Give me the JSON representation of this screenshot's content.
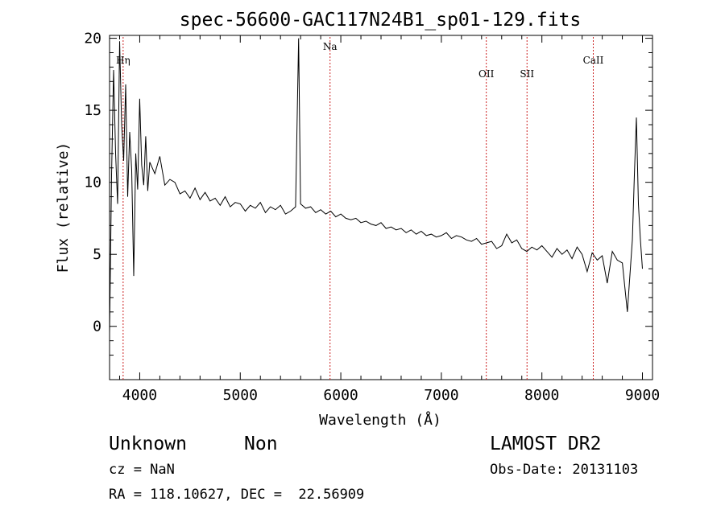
{
  "chart_data": {
    "type": "line",
    "title": "spec-56600-GAC117N24B1_sp01-129.fits",
    "xlabel": "Wavelength (Å)",
    "ylabel": "Flux (relative)",
    "xlim": [
      3700,
      9100
    ],
    "ylim": [
      -3.7,
      20.2
    ],
    "x_ticks": [
      4000,
      5000,
      6000,
      7000,
      8000,
      9000
    ],
    "y_ticks": [
      0,
      5,
      10,
      15,
      20
    ],
    "grid": false,
    "line_color": "#000000",
    "marker_color": "#cc2222",
    "spectral_lines": [
      {
        "name": "Hη",
        "x": 3835
      },
      {
        "name": "Na",
        "x": 5893
      },
      {
        "name": "OII",
        "x": 7447
      },
      {
        "name": "SII",
        "x": 7852
      },
      {
        "name": "CaII",
        "x": 8511
      }
    ],
    "series": [
      {
        "x": [
          3700,
          3720,
          3740,
          3760,
          3780,
          3800,
          3820,
          3840,
          3860,
          3880,
          3900,
          3920,
          3940,
          3960,
          3980,
          4000,
          4020,
          4040,
          4060,
          4080,
          4100,
          4150,
          4200,
          4250,
          4300,
          4350,
          4400,
          4450,
          4500,
          4550,
          4600,
          4650,
          4700,
          4750,
          4800,
          4850,
          4900,
          4950,
          5000,
          5050,
          5100,
          5150,
          5200,
          5250,
          5300,
          5350,
          5400,
          5450,
          5500,
          5550,
          5580,
          5600,
          5650,
          5700,
          5750,
          5800,
          5850,
          5900,
          5950,
          6000,
          6050,
          6100,
          6150,
          6200,
          6250,
          6300,
          6350,
          6400,
          6450,
          6500,
          6550,
          6600,
          6650,
          6700,
          6750,
          6800,
          6850,
          6900,
          6950,
          7000,
          7050,
          7100,
          7150,
          7200,
          7250,
          7300,
          7350,
          7400,
          7450,
          7500,
          7550,
          7600,
          7650,
          7700,
          7750,
          7800,
          7850,
          7900,
          7950,
          8000,
          8050,
          8100,
          8150,
          8200,
          8250,
          8300,
          8350,
          8400,
          8450,
          8500,
          8550,
          8600,
          8650,
          8700,
          8750,
          8800,
          8850,
          8900,
          8920,
          8940,
          8960,
          8980,
          9000
        ],
        "y": [
          -0.5,
          10.5,
          17.8,
          12.0,
          8.5,
          19.8,
          14.0,
          11.5,
          16.8,
          9.0,
          13.5,
          10.8,
          3.5,
          12.0,
          9.5,
          15.8,
          11.2,
          9.8,
          13.2,
          9.4,
          11.4,
          10.6,
          11.8,
          9.8,
          10.2,
          10.0,
          9.2,
          9.4,
          8.9,
          9.6,
          8.8,
          9.3,
          8.7,
          8.9,
          8.4,
          9.0,
          8.3,
          8.6,
          8.5,
          8.0,
          8.4,
          8.2,
          8.6,
          7.9,
          8.3,
          8.1,
          8.4,
          7.8,
          8.0,
          8.3,
          20.0,
          8.5,
          8.2,
          8.3,
          7.9,
          8.1,
          7.8,
          8.0,
          7.6,
          7.8,
          7.5,
          7.4,
          7.5,
          7.2,
          7.3,
          7.1,
          7.0,
          7.2,
          6.8,
          6.9,
          6.7,
          6.8,
          6.5,
          6.7,
          6.4,
          6.6,
          6.3,
          6.4,
          6.2,
          6.3,
          6.5,
          6.1,
          6.3,
          6.2,
          6.0,
          5.9,
          6.1,
          5.7,
          5.8,
          5.9,
          5.4,
          5.6,
          6.4,
          5.8,
          6.0,
          5.4,
          5.2,
          5.5,
          5.3,
          5.6,
          5.2,
          4.8,
          5.4,
          5.0,
          5.3,
          4.7,
          5.5,
          5.0,
          3.8,
          5.1,
          4.6,
          4.9,
          3.0,
          5.2,
          4.6,
          4.4,
          1.0,
          6.0,
          10.5,
          14.5,
          8.5,
          6.0,
          4.0
        ]
      }
    ]
  },
  "footer": {
    "object": "Unknown",
    "class": "Non",
    "cz": "cz = NaN",
    "coords": "RA = 118.10627, DEC =  22.56909",
    "survey": "LAMOST DR2",
    "obs_date": "Obs-Date: 20131103"
  }
}
